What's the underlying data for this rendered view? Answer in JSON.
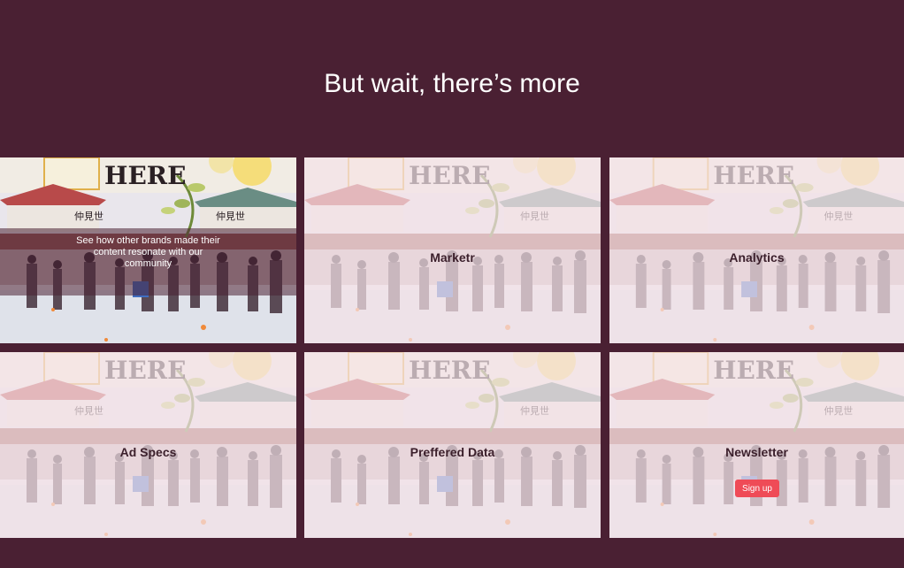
{
  "section": {
    "title": "But wait, there’s more"
  },
  "cards": [
    {
      "label": "",
      "hover_text": "See how other brands made their content resonate with our community"
    },
    {
      "label": "Marketr"
    },
    {
      "label": "Analytics"
    },
    {
      "label": "Ad Specs"
    },
    {
      "label": "Preffered Data"
    },
    {
      "label": "Newsletter",
      "button_label": "Sign up"
    }
  ],
  "colors": {
    "background": "#4a2033",
    "button": "#ef4b57",
    "overlay": "#f4e2e8"
  },
  "image": {
    "sign_text": "HERE",
    "gate_text": "仲見世"
  }
}
